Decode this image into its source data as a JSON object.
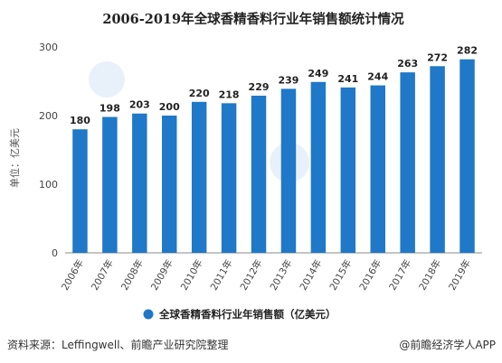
{
  "chart_data": {
    "type": "bar",
    "title": "2006-2019年全球香精香料行业年销售额统计情况",
    "ylabel": "单位：亿美元",
    "xlabel": "",
    "categories": [
      "2006年",
      "2007年",
      "2008年",
      "2009年",
      "2010年",
      "2011年",
      "2012年",
      "2013年",
      "2014年",
      "2015年",
      "2016年",
      "2017年",
      "2018年",
      "2019年"
    ],
    "series": [
      {
        "name": "全球香精香料行业年销售额（亿美元）",
        "values": [
          180,
          198,
          203,
          200,
          220,
          218,
          229,
          239,
          249,
          241,
          244,
          263,
          272,
          282
        ],
        "color": "#1f78c8"
      }
    ],
    "ylim": [
      0,
      300
    ],
    "yticks": [
      0,
      100,
      200,
      300
    ],
    "grid": false,
    "legend_position": "bottom"
  },
  "source_text": "资料来源：Leffingwell、前瞻产业研究院整理",
  "watermark_text": "@前瞻经济学人APP",
  "colors": {
    "bar": "#1f78c8",
    "axis": "#888888"
  }
}
